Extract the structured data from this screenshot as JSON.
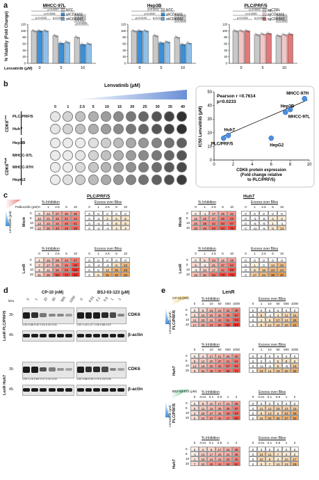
{
  "panels": {
    "a": "a",
    "b": "b",
    "c": "c",
    "d": "d",
    "e": "e"
  },
  "panel_a": {
    "ylabel": "% Viability (Fold Change)",
    "xlabel": "Lenvatinib (μM)",
    "yticks": [
      "0",
      "20",
      "40",
      "60",
      "80",
      "100",
      "120"
    ],
    "charts": [
      {
        "title": "MHCC-97L",
        "legend": [
          "NTC",
          "shCDK6#1",
          "shCDK6#2"
        ],
        "colors": [
          "#c8c8c8",
          "#3c8fd8",
          "#8ec1ea"
        ],
        "categories": [
          "0",
          "5",
          "10"
        ],
        "series": [
          [
            100,
            85,
            80
          ],
          [
            100,
            62,
            58
          ],
          [
            100,
            65,
            60
          ]
        ],
        "pvals": [
          "p=0.0057",
          "p=0.0058",
          "p=0.0033",
          "p=0.0029",
          "p=0.0370",
          "p=0.0322",
          "p=0.0187",
          "p=0.0343"
        ]
      },
      {
        "title": "Hep3B",
        "legend": [
          "NTC",
          "shCDK6#1",
          "shCDK6#2"
        ],
        "colors": [
          "#c8c8c8",
          "#3c8fd8",
          "#8ec1ea"
        ],
        "categories": [
          "0",
          "5",
          "10"
        ],
        "series": [
          [
            100,
            85,
            80
          ],
          [
            100,
            63,
            58
          ],
          [
            100,
            66,
            62
          ]
        ],
        "pvals": [
          "p=0.0014",
          "p=0.0040",
          "p=0.0143",
          "p=0.0172",
          "p=0.0215",
          "p=0.0137",
          "p=0.0028"
        ]
      },
      {
        "title": "PLC/PRF/5",
        "legend": [
          "sgCTRL",
          "sgCDK6#1",
          "sgCDK6#2"
        ],
        "colors": [
          "#c8c8c8",
          "#f3c6c6",
          "#e07a7a"
        ],
        "categories": [
          "0",
          "5",
          "10"
        ],
        "series": [
          [
            100,
            88,
            85
          ],
          [
            100,
            90,
            88
          ],
          [
            100,
            92,
            90
          ]
        ],
        "pvals": [
          "p=0.0003",
          "p=0.0055",
          "p=0.0001",
          "p=0.0001",
          "p=0.0021",
          "p=0.0102",
          "p=0.0350"
        ]
      }
    ]
  },
  "panel_b": {
    "lenvatinib_label": "Lenvatinib (μM)",
    "concentrations": [
      "0",
      "1",
      "2.5",
      "5",
      "10",
      "15",
      "20",
      "25",
      "30",
      "35",
      "40"
    ],
    "cell_lines": [
      "PLC/PRF/5",
      "Huh7",
      "Hep3B",
      "MHCC-97L",
      "MHCC-97H",
      "HepG2"
    ],
    "group_low": "CDK6",
    "group_low_sup": "Low",
    "group_high": "CDK6",
    "group_high_sup": "High",
    "scatter": {
      "pearson": "Pearson r =0.7614",
      "pvalue": "p=0.0233",
      "ylabel": "IC50 Lenvatinib (μM)",
      "xlabel_lines": [
        "CDK6 protein expression",
        "(Fold change relative",
        "to PLC/PRF/5)"
      ],
      "xticks": [
        "0",
        "2",
        "4",
        "6",
        "8",
        "10"
      ],
      "yticks": [
        "0",
        "10",
        "20",
        "30",
        "40",
        "50"
      ],
      "xlim": [
        0,
        10
      ],
      "ylim": [
        0,
        50
      ]
    }
  },
  "chart_data": {
    "type": "scatter",
    "xlabel": "CDK6 protein expression (Fold change relative to PLC/PRF/5)",
    "ylabel": "IC50 Lenvatinib (μM)",
    "xlim": [
      0,
      10
    ],
    "ylim": [
      0,
      50
    ],
    "points": [
      {
        "label": "PLC/PRF/5",
        "x": 1.0,
        "y": 16
      },
      {
        "label": "Huh7",
        "x": 1.5,
        "y": 18
      },
      {
        "label": "HepG2",
        "x": 6.0,
        "y": 16
      },
      {
        "label": "MHCC-97L",
        "x": 7.5,
        "y": 35
      },
      {
        "label": "Hep3B",
        "x": 8.0,
        "y": 37
      },
      {
        "label": "MHCC-97H",
        "x": 9.5,
        "y": 45
      }
    ]
  },
  "panel_c": {
    "palbociclib": "Palbociclib (μM)",
    "lenvatinib": "Lenvatinib (μM)",
    "pct": "% Inhibition",
    "excess": "Excess over Bliss",
    "tables": [
      {
        "title": "PLC/PRF/5",
        "row": "Mock",
        "cols": [
          "0",
          "1",
          "2.5",
          "5",
          "10"
        ],
        "rows": [
          "0",
          "5",
          "10",
          "20"
        ],
        "inh": [
          [
            "0",
            "12",
            "27",
            "30",
            "36"
          ],
          [
            "10",
            "21",
            "32",
            "41",
            "44"
          ],
          [
            "12",
            "23",
            "34",
            "46",
            "51"
          ],
          [
            "12",
            "30",
            "43",
            "49",
            "58"
          ]
        ],
        "ex": [
          [
            "0",
            "0",
            "0",
            "0",
            "0"
          ],
          [
            "0",
            "-2",
            "2",
            "5",
            "6"
          ],
          [
            "0",
            "-4",
            "-4",
            "6",
            "6"
          ],
          [
            "0",
            "-4",
            "-4",
            "3",
            "3"
          ]
        ]
      },
      {
        "title": "Huh7",
        "row": "Mock",
        "cols": [
          "0",
          "1",
          "2.5",
          "5",
          "10"
        ],
        "rows": [
          "0",
          "5",
          "10",
          "20"
        ],
        "inh": [
          [
            "0",
            "-1",
            "17",
            "25",
            "32"
          ],
          [
            "15",
            "26",
            "27",
            "45",
            "49"
          ],
          [
            "26",
            "38",
            "42",
            "53",
            "57"
          ],
          [
            "30",
            "39",
            "53",
            "64",
            "75"
          ]
        ],
        "ex": [
          [
            "0",
            "0",
            "0",
            "0",
            "0"
          ],
          [
            "0",
            "-3",
            "-8",
            "4",
            "4"
          ],
          [
            "0",
            "-5",
            "-8",
            "1",
            "-1"
          ],
          [
            "0",
            "-11",
            "-5",
            "5",
            "14"
          ]
        ]
      },
      {
        "title": "",
        "row": "LenR",
        "cols": [
          "0",
          "1",
          "2.5",
          "5",
          "10"
        ],
        "rows": [
          "0",
          "5",
          "10",
          "20"
        ],
        "inh": [
          [
            "1",
            "15",
            "26",
            "34",
            "47"
          ],
          [
            "7",
            "17",
            "25",
            "45",
            "69"
          ],
          [
            "2",
            "11",
            "36",
            "53",
            "82"
          ],
          [
            "11",
            "30",
            "65",
            "72",
            "82"
          ]
        ],
        "ex": [
          [
            "0",
            "0",
            "0",
            "0",
            "0"
          ],
          [
            "0",
            "-2",
            "-3",
            "8",
            "23"
          ],
          [
            "0",
            "0",
            "12",
            "25",
            "33"
          ],
          [
            "0",
            "6",
            "31",
            "32",
            "33"
          ]
        ]
      },
      {
        "title": "",
        "row": "LenR",
        "cols": [
          "0",
          "1",
          "2.5",
          "5",
          "10"
        ],
        "rows": [
          "0",
          "5",
          "10",
          "20"
        ],
        "inh": [
          [
            "0",
            "5",
            "24",
            "15",
            "29"
          ],
          [
            "6",
            "-2",
            "21",
            "37",
            "52"
          ],
          [
            "-3",
            "10",
            "17",
            "42",
            "69"
          ],
          [
            "19",
            "30",
            "53",
            "73",
            "79"
          ]
        ],
        "ex": [
          [
            "0",
            "0",
            "0",
            "0",
            "0"
          ],
          [
            "0",
            "1",
            "0",
            "14",
            "22"
          ],
          [
            "0",
            "8",
            "16",
            "24",
            "24"
          ],
          [
            "0",
            "17",
            "24",
            "38",
            "37"
          ]
        ]
      }
    ]
  },
  "panel_d": {
    "kda": "kDa",
    "cp10": "CP-10 (nM)",
    "bsj": "BSJ-03-123 (μM)",
    "cp10_cols": [
      "0",
      "1",
      "10",
      "50",
      "500",
      "1000"
    ],
    "bsj_cols": [
      "0",
      "0.01",
      "0.1",
      "0.5",
      "1",
      "2"
    ],
    "markers": [
      "35-",
      "45-",
      "35-",
      "45-"
    ],
    "rows": [
      "LenR PLC/PRF/5",
      "LenR Huh7"
    ],
    "labels": [
      "CDK6",
      "β-actin",
      "CDK6",
      "β-actin"
    ],
    "q1_left": "1.00 0.88 0.32 0.24 0.22 0.04",
    "q1_right": "1.00 1.43 1.27 1.05 0.68 0.22",
    "q2_left": "1.00 1.15 0.60 0.27 0.12 0.03",
    "q2_right": "1.00 0.88 0.94 0.70 0.23 0.05"
  },
  "panel_e": {
    "title": "LenR",
    "cp10": "CP-10 (nM)",
    "bsj": "BSJ-03-123 (μM)",
    "lenvatinib": "Lenvatinib (μM)",
    "pct": "% Inhibition",
    "excess": "Excess over Bliss",
    "tables": [
      {
        "row": "PLC/PRF/5",
        "cols": [
          "0",
          "1",
          "10",
          "50",
          "500",
          "1000"
        ],
        "rows": [
          "0",
          "5",
          "10",
          "20"
        ],
        "inh": [
          [
            "0",
            "5",
            "18",
            "22",
            "32",
            "48"
          ],
          [
            "4",
            "15",
            "25",
            "32",
            "46",
            "62"
          ],
          [
            "11",
            "20",
            "24",
            "40",
            "51",
            "73"
          ],
          [
            "17",
            "29",
            "43",
            "50",
            "68",
            "87"
          ]
        ],
        "ex": [
          [
            "0",
            "0",
            "0",
            "0",
            "0",
            "0"
          ],
          [
            "0",
            "8",
            "-3",
            "4",
            "11",
            "15"
          ],
          [
            "0",
            "2",
            "6",
            "17",
            "13",
            "25"
          ],
          [
            "0",
            "8",
            "12",
            "16",
            "20",
            "31"
          ]
        ]
      },
      {
        "row": "Huh7",
        "cols": [
          "0",
          "1",
          "10",
          "50",
          "500",
          "1000"
        ],
        "rows": [
          "0",
          "5",
          "10",
          "20"
        ],
        "inh": [
          [
            "0",
            "4",
            "17",
            "21",
            "25",
            "40"
          ],
          [
            "9",
            "12",
            "20",
            "37",
            "41",
            "54"
          ],
          [
            "12",
            "18",
            "30",
            "42",
            "57",
            "64"
          ],
          [
            "9",
            "31",
            "38",
            "47",
            "58",
            "71"
          ]
        ],
        "ex": [
          [
            "0",
            "0",
            "0",
            "0",
            "0",
            "0"
          ],
          [
            "0",
            "0",
            "-1",
            "5",
            "8",
            "6"
          ],
          [
            "0",
            "-11",
            "-5",
            "8",
            "-8",
            "18"
          ],
          [
            "0",
            "19",
            "14",
            "19",
            "20",
            "28"
          ]
        ]
      },
      {
        "row": "PLC/PRF/5",
        "cols": [
          "0",
          "0.01",
          "0.1",
          "0.5",
          "1",
          "2"
        ],
        "rows": [
          "0",
          "5",
          "10",
          "20"
        ],
        "inh": [
          [
            "0",
            "9",
            "10",
            "17",
            "22",
            "38"
          ],
          [
            "5",
            "12",
            "18",
            "25",
            "38",
            "52"
          ],
          [
            "3",
            "20",
            "27",
            "30",
            "49",
            "63"
          ],
          [
            "5",
            "24",
            "37",
            "40",
            "47",
            "69"
          ]
        ],
        "ex": [
          [
            "0",
            "0",
            "0",
            "0",
            "0",
            "0"
          ],
          [
            "0",
            "11",
            "12",
            "15",
            "13",
            "15"
          ],
          [
            "0",
            "8",
            "13",
            "9",
            "22",
            "28"
          ],
          [
            "0",
            "16",
            "24",
            "25",
            "27",
            "32"
          ]
        ]
      },
      {
        "row": "Huh7",
        "cols": [
          "0",
          "0.01",
          "0.1",
          "0.5",
          "1",
          "2"
        ],
        "rows": [
          "0",
          "5",
          "10",
          "20"
        ],
        "inh": [
          [
            "0",
            "4",
            "6",
            "17",
            "24",
            "38"
          ],
          [
            "-1",
            "14",
            "17",
            "20",
            "24",
            "39"
          ],
          [
            "1",
            "16",
            "19",
            "23",
            "33",
            "45"
          ],
          [
            "7",
            "20",
            "40",
            "42",
            "48",
            "62"
          ]
        ],
        "ex": [
          [
            "0",
            "0",
            "0",
            "0",
            "0",
            "0"
          ],
          [
            "0",
            "14",
            "11",
            "7",
            "4",
            "2"
          ],
          [
            "0",
            "12",
            "9",
            "4",
            "10",
            "17"
          ],
          [
            "0",
            "5",
            "7",
            "10",
            "13",
            "25"
          ]
        ]
      }
    ]
  }
}
